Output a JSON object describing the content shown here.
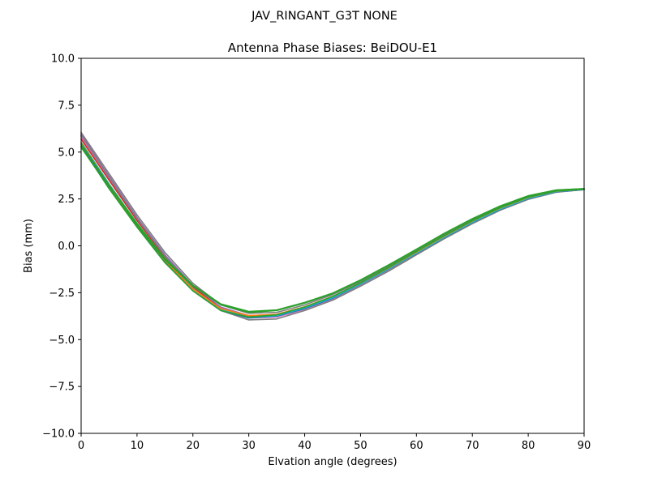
{
  "figure": {
    "suptitle": "JAV_RINGANT_G3T NONE"
  },
  "chart_data": {
    "type": "line",
    "title": "Antenna Phase Biases: BeiDOU-E1",
    "xlabel": "Elvation angle (degrees)",
    "ylabel": "Bias (mm)",
    "xlim": [
      0,
      90
    ],
    "ylim": [
      -10,
      10
    ],
    "xticks": [
      0,
      10,
      20,
      30,
      40,
      50,
      60,
      70,
      80,
      90
    ],
    "yticks": [
      -10.0,
      -7.5,
      -5.0,
      -2.5,
      0.0,
      2.5,
      5.0,
      7.5,
      10.0
    ],
    "xtick_labels": [
      "0",
      "10",
      "20",
      "30",
      "40",
      "50",
      "60",
      "70",
      "80",
      "90"
    ],
    "ytick_labels": [
      "−10.0",
      "−7.5",
      "−5.0",
      "−2.5",
      "0.0",
      "2.5",
      "5.0",
      "7.5",
      "10.0"
    ],
    "grid": false,
    "x": [
      0,
      5,
      10,
      15,
      20,
      25,
      30,
      35,
      40,
      45,
      50,
      55,
      60,
      65,
      70,
      75,
      80,
      85,
      90
    ],
    "series": [
      {
        "color": "#7f7f7f",
        "values": [
          6.05,
          3.85,
          1.65,
          -0.35,
          -2.0,
          -3.15,
          -3.6,
          -3.55,
          -3.15,
          -2.6,
          -1.9,
          -1.1,
          -0.25,
          0.6,
          1.4,
          2.1,
          2.62,
          2.93,
          3.03
        ]
      },
      {
        "color": "#8c564b",
        "values": [
          5.85,
          3.6,
          1.45,
          -0.55,
          -2.2,
          -3.35,
          -3.8,
          -3.75,
          -3.35,
          -2.8,
          -2.05,
          -1.25,
          -0.4,
          0.45,
          1.25,
          1.95,
          2.52,
          2.88,
          3.0
        ]
      },
      {
        "color": "#e377c2",
        "values": [
          5.8,
          3.55,
          1.4,
          -0.6,
          -2.25,
          -3.4,
          -3.85,
          -3.8,
          -3.4,
          -2.85,
          -2.1,
          -1.3,
          -0.45,
          0.4,
          1.2,
          1.92,
          2.5,
          2.87,
          3.0
        ]
      },
      {
        "color": "#d62728",
        "values": [
          5.7,
          3.5,
          1.35,
          -0.6,
          -2.2,
          -3.35,
          -3.75,
          -3.7,
          -3.3,
          -2.75,
          -2.05,
          -1.22,
          -0.38,
          0.46,
          1.26,
          1.96,
          2.55,
          2.9,
          3.02
        ]
      },
      {
        "color": "#9467bd",
        "values": [
          5.95,
          3.72,
          1.52,
          -0.48,
          -2.12,
          -3.27,
          -3.72,
          -3.67,
          -3.27,
          -2.72,
          -2.0,
          -1.2,
          -0.35,
          0.5,
          1.3,
          2.0,
          2.57,
          2.91,
          3.02
        ]
      },
      {
        "color": "#7f7f7f",
        "values": [
          5.9,
          3.65,
          1.45,
          -0.55,
          -2.25,
          -3.45,
          -3.95,
          -3.9,
          -3.45,
          -2.9,
          -2.15,
          -1.35,
          -0.48,
          0.38,
          1.18,
          1.9,
          2.48,
          2.86,
          3.0
        ]
      },
      {
        "color": "#1f77b4",
        "values": [
          5.4,
          3.15,
          1.05,
          -0.85,
          -2.4,
          -3.45,
          -3.85,
          -3.75,
          -3.35,
          -2.8,
          -2.05,
          -1.25,
          -0.4,
          0.45,
          1.25,
          1.95,
          2.52,
          2.88,
          3.0
        ]
      },
      {
        "color": "#17becf",
        "values": [
          5.55,
          3.3,
          1.2,
          -0.72,
          -2.3,
          -3.4,
          -3.8,
          -3.72,
          -3.3,
          -2.76,
          -2.03,
          -1.22,
          -0.38,
          0.47,
          1.27,
          1.97,
          2.54,
          2.9,
          3.01
        ]
      },
      {
        "color": "#ff7f0e",
        "values": [
          5.5,
          3.25,
          1.15,
          -0.78,
          -2.3,
          -3.35,
          -3.72,
          -3.65,
          -3.25,
          -2.7,
          -1.98,
          -1.18,
          -0.33,
          0.52,
          1.32,
          2.02,
          2.58,
          2.92,
          3.02
        ]
      },
      {
        "color": "#2ca02c",
        "values": [
          5.3,
          3.05,
          1.0,
          -0.9,
          -2.4,
          -3.45,
          -3.8,
          -3.68,
          -3.26,
          -2.7,
          -1.97,
          -1.16,
          -0.3,
          0.55,
          1.34,
          2.04,
          2.6,
          2.93,
          3.02
        ]
      },
      {
        "color": "#2ca02c",
        "values": [
          5.25,
          3.1,
          1.1,
          -0.75,
          -2.15,
          -3.15,
          -3.55,
          -3.45,
          -3.05,
          -2.55,
          -1.85,
          -1.05,
          -0.2,
          0.65,
          1.43,
          2.11,
          2.66,
          2.97,
          3.05
        ]
      },
      {
        "color": "#2ca02c",
        "values": [
          5.45,
          3.25,
          1.2,
          -0.68,
          -2.1,
          -3.1,
          -3.5,
          -3.42,
          -3.02,
          -2.52,
          -1.82,
          -1.02,
          -0.18,
          0.67,
          1.45,
          2.13,
          2.67,
          2.98,
          3.05
        ]
      }
    ]
  }
}
